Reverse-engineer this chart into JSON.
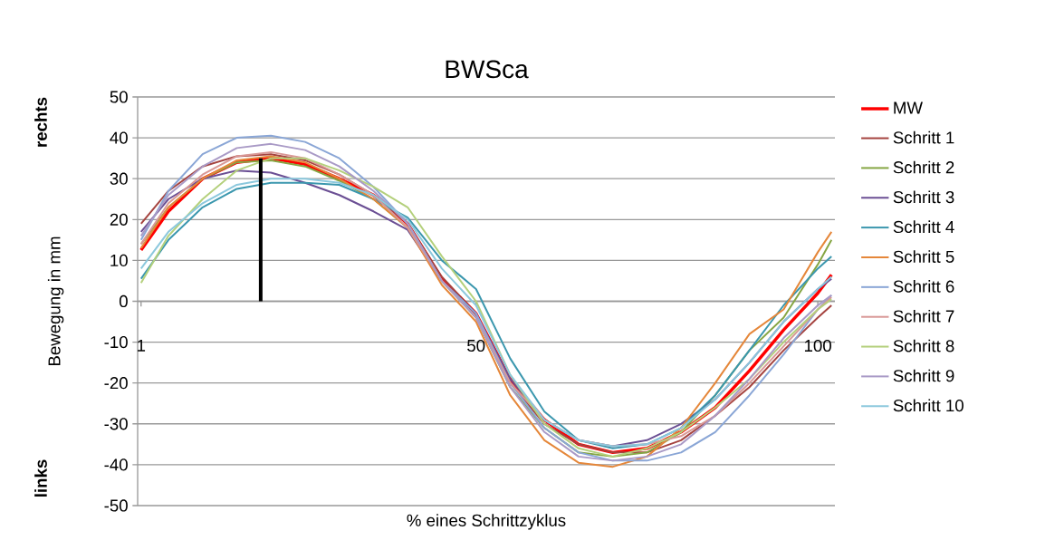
{
  "chart_data": {
    "type": "line",
    "title": "BWSca",
    "xlabel": "% eines Schrittzyklus",
    "ylabel": "Bewegung in mm",
    "annotations": [
      "rechts",
      "links"
    ],
    "x": [
      1,
      5,
      10,
      15,
      20,
      25,
      30,
      35,
      40,
      45,
      50,
      55,
      60,
      65,
      70,
      75,
      80,
      85,
      90,
      95,
      100,
      102
    ],
    "xlim": [
      0.5,
      102.5
    ],
    "xticks": [
      1,
      50,
      100
    ],
    "ylim": [
      -50,
      50
    ],
    "yticks": [
      -50,
      -40,
      -30,
      -20,
      -10,
      0,
      10,
      20,
      30,
      40,
      50
    ],
    "grid": "y",
    "legend": "right",
    "marker": "none",
    "line_style": "solid",
    "series": [
      {
        "name": "MW",
        "color": "#ff0000",
        "values": [
          12.5,
          22,
          30,
          34,
          35,
          33.5,
          30,
          26,
          19,
          5.5,
          -3,
          -19,
          -29,
          -35,
          -37,
          -36,
          -32,
          -26,
          -17,
          -7,
          2,
          6.5
        ]
      },
      {
        "name": "Schritt 1",
        "color": "#a5433f",
        "values": [
          19,
          27,
          33,
          35.5,
          36,
          34.5,
          31,
          26,
          19,
          6,
          -3,
          -20,
          -30,
          -35,
          -37,
          -37,
          -34,
          -28,
          -21,
          -12,
          -4,
          -1
        ]
      },
      {
        "name": "Schritt 2",
        "color": "#86a644",
        "values": [
          14,
          23,
          30,
          34,
          34.5,
          33,
          29.5,
          25,
          18,
          5,
          -4,
          -21,
          -31,
          -37,
          -38,
          -37,
          -32,
          -23,
          -12,
          -4,
          9,
          15
        ]
      },
      {
        "name": "Schritt 3",
        "color": "#6b4f94",
        "values": [
          17,
          25,
          30,
          32,
          31.5,
          29,
          26,
          22,
          17.5,
          5,
          -3,
          -19,
          -29,
          -34,
          -35.5,
          -34,
          -30,
          -24,
          -15,
          -5,
          3,
          5.5
        ]
      },
      {
        "name": "Schritt 4",
        "color": "#3b97ae",
        "values": [
          5.5,
          15,
          23,
          27.5,
          29,
          29,
          28.5,
          25,
          20.5,
          10,
          3,
          -14,
          -27,
          -34,
          -36,
          -35,
          -31,
          -23,
          -12,
          -1,
          8,
          11
        ]
      },
      {
        "name": "Schritt 5",
        "color": "#e5873a",
        "values": [
          13,
          23,
          30,
          34.5,
          35.5,
          34,
          30,
          25,
          18,
          4,
          -5,
          -23,
          -34,
          -39.5,
          -40.5,
          -38,
          -31,
          -20,
          -8,
          -2,
          12,
          17
        ]
      },
      {
        "name": "Schritt 6",
        "color": "#8aa6d6",
        "values": [
          15,
          27,
          36,
          40,
          40.5,
          39,
          35,
          28,
          19,
          5,
          -3,
          -20,
          -31,
          -37,
          -39,
          -39,
          -37,
          -32,
          -23,
          -13,
          -2,
          1.5
        ]
      },
      {
        "name": "Schritt 7",
        "color": "#d99896",
        "values": [
          14,
          24,
          31,
          35.5,
          36.5,
          35,
          31,
          26,
          18,
          5,
          -4,
          -20,
          -29,
          -34,
          -35.5,
          -35,
          -33,
          -28,
          -20,
          -11,
          -2,
          1
        ]
      },
      {
        "name": "Schritt 8",
        "color": "#b4d07c",
        "values": [
          4.5,
          16,
          25,
          32,
          35,
          35,
          32,
          28,
          23,
          11,
          0,
          -18,
          -30,
          -36,
          -38,
          -36,
          -32,
          -26,
          -19,
          -10,
          -2,
          0.5
        ]
      },
      {
        "name": "Schritt 9",
        "color": "#a99ac6",
        "values": [
          16,
          26,
          33,
          37.5,
          38.5,
          37,
          33,
          27,
          19,
          5,
          -4,
          -21,
          -32,
          -38,
          -39,
          -38,
          -35,
          -28,
          -19,
          -9,
          -1,
          1.5
        ]
      },
      {
        "name": "Schritt 10",
        "color": "#8cc8dd",
        "values": [
          8,
          17,
          24,
          28.5,
          30,
          30,
          29,
          26,
          20,
          8,
          -1,
          -18,
          -29,
          -34,
          -35.5,
          -35,
          -31,
          -24,
          -15,
          -5,
          3,
          6
        ]
      },
      {
        "color": "#000000",
        "x": [
          18.5,
          18.5
        ],
        "values": [
          0,
          35
        ]
      }
    ]
  }
}
